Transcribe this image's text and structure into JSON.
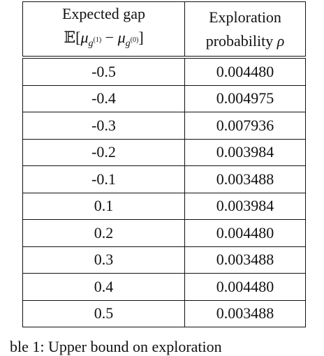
{
  "table": {
    "header": [
      {
        "lines": [
          "Expected gap",
          [
            "𝔼[",
            "μ",
            "g",
            "(1)",
            " − ",
            "μ",
            "g",
            "(0)",
            "]"
          ]
        ]
      },
      {
        "lines": [
          "Exploration",
          [
            "probability ",
            "ρ"
          ]
        ]
      }
    ],
    "rows": [
      [
        "-0.5",
        "0.004480"
      ],
      [
        "-0.4",
        "0.004975"
      ],
      [
        "-0.3",
        "0.007936"
      ],
      [
        "-0.2",
        "0.003984"
      ],
      [
        "-0.1",
        "0.003488"
      ],
      [
        "0.1",
        "0.003984"
      ],
      [
        "0.2",
        "0.004480"
      ],
      [
        "0.3",
        "0.003488"
      ],
      [
        "0.4",
        "0.004480"
      ],
      [
        "0.5",
        "0.003488"
      ]
    ]
  },
  "caption": "ble 1: Upper bound on exploration"
}
